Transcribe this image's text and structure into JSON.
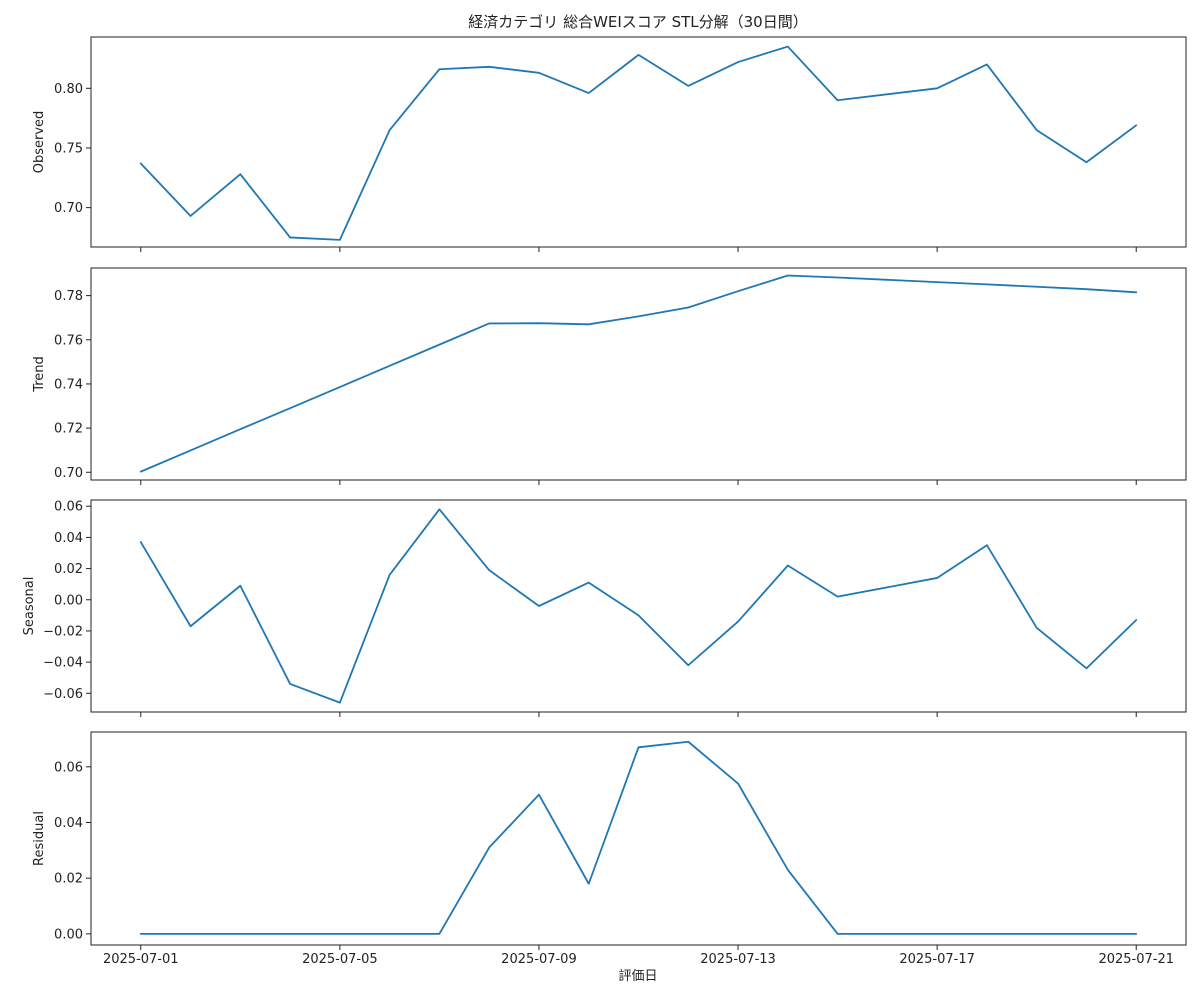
{
  "colors": {
    "line": "#1f77b4",
    "axis": "#222222",
    "background": "#ffffff"
  },
  "chart_data": {
    "type": "line",
    "title": "経済カテゴリ 総合WEIスコア STL分解（30日間）",
    "xlabel": "評価日",
    "x": [
      "2025-07-01",
      "2025-07-02",
      "2025-07-03",
      "2025-07-04",
      "2025-07-05",
      "2025-07-06",
      "2025-07-07",
      "2025-07-08",
      "2025-07-09",
      "2025-07-10",
      "2025-07-11",
      "2025-07-12",
      "2025-07-13",
      "2025-07-14",
      "2025-07-15",
      "2025-07-17",
      "2025-07-18",
      "2025-07-19",
      "2025-07-20",
      "2025-07-21"
    ],
    "x_ticks": [
      "2025-07-01",
      "2025-07-05",
      "2025-07-09",
      "2025-07-13",
      "2025-07-17",
      "2025-07-21"
    ],
    "x_range": [
      "2025-06-30",
      "2025-07-22"
    ],
    "grid": false,
    "panels": [
      {
        "ylabel": "Observed",
        "ylim": [
          0.667,
          0.843
        ],
        "yticks": [
          0.7,
          0.75,
          0.8
        ],
        "ytick_labels": [
          "0.70",
          "0.75",
          "0.80"
        ],
        "values": [
          0.737,
          0.693,
          0.728,
          0.675,
          0.673,
          0.765,
          0.816,
          0.818,
          0.813,
          0.796,
          0.828,
          0.802,
          0.822,
          0.835,
          0.79,
          0.8,
          0.82,
          0.765,
          0.738,
          0.769
        ]
      },
      {
        "ylabel": "Trend",
        "ylim": [
          0.6965,
          0.7925
        ],
        "yticks": [
          0.7,
          0.72,
          0.74,
          0.76,
          0.78
        ],
        "ytick_labels": [
          "0.70",
          "0.72",
          "0.74",
          "0.76",
          "0.78"
        ],
        "values": [
          0.7003,
          0.7099,
          0.7195,
          0.729,
          0.7386,
          0.7482,
          0.7578,
          0.7674,
          0.7675,
          0.767,
          0.7706,
          0.7746,
          0.782,
          0.7891,
          0.7882,
          0.7861,
          0.7851,
          0.784,
          0.7829,
          0.7815
        ]
      },
      {
        "ylabel": "Seasonal",
        "ylim": [
          -0.072,
          0.064
        ],
        "yticks": [
          -0.06,
          -0.04,
          -0.02,
          0.0,
          0.02,
          0.04,
          0.06
        ],
        "ytick_labels": [
          "−0.06",
          "−0.04",
          "−0.02",
          "0.00",
          "0.02",
          "0.04",
          "0.06"
        ],
        "values": [
          0.037,
          -0.017,
          0.009,
          -0.054,
          -0.066,
          0.016,
          0.058,
          0.019,
          -0.004,
          0.011,
          -0.01,
          -0.042,
          -0.014,
          0.022,
          0.002,
          0.014,
          0.035,
          -0.018,
          -0.044,
          -0.013
        ]
      },
      {
        "ylabel": "Residual",
        "ylim": [
          -0.004,
          0.0725
        ],
        "yticks": [
          0.0,
          0.02,
          0.04,
          0.06
        ],
        "ytick_labels": [
          "0.00",
          "0.02",
          "0.04",
          "0.06"
        ],
        "values": [
          0.0,
          0.0,
          0.0,
          0.0,
          0.0,
          0.0,
          0.0,
          0.031,
          0.05,
          0.018,
          0.067,
          0.069,
          0.054,
          0.023,
          0.0,
          0.0,
          0.0,
          0.0,
          0.0,
          0.0
        ]
      }
    ]
  }
}
